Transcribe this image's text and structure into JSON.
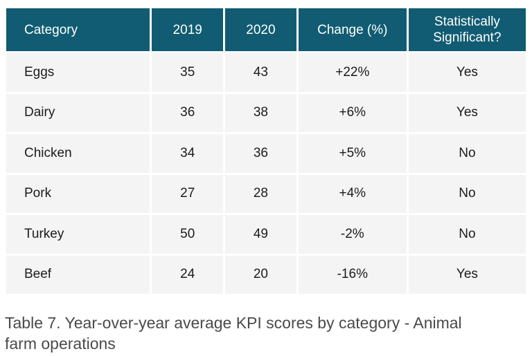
{
  "chart_data": {
    "type": "table",
    "columns": [
      "Category",
      "2019",
      "2020",
      "Change (%)",
      "Statistically Significant?"
    ],
    "rows": [
      {
        "category": "Eggs",
        "y2019": "35",
        "y2020": "43",
        "change": "+22%",
        "significant": "Yes"
      },
      {
        "category": "Dairy",
        "y2019": "36",
        "y2020": "38",
        "change": "+6%",
        "significant": "Yes"
      },
      {
        "category": "Chicken",
        "y2019": "34",
        "y2020": "36",
        "change": "+5%",
        "significant": "No"
      },
      {
        "category": "Pork",
        "y2019": "27",
        "y2020": "28",
        "change": "+4%",
        "significant": "No"
      },
      {
        "category": "Turkey",
        "y2019": "50",
        "y2020": "49",
        "change": "-2%",
        "significant": "No"
      },
      {
        "category": "Beef",
        "y2019": "24",
        "y2020": "20",
        "change": "-16%",
        "significant": "Yes"
      }
    ],
    "caption": "Table 7. Year-over-year average KPI scores by category - Animal farm operations"
  },
  "colors": {
    "header_bg": "#115c72",
    "header_text": "#ffffff",
    "cell_bg": "#f4f4f4",
    "caption_text": "#4a4a4a"
  }
}
